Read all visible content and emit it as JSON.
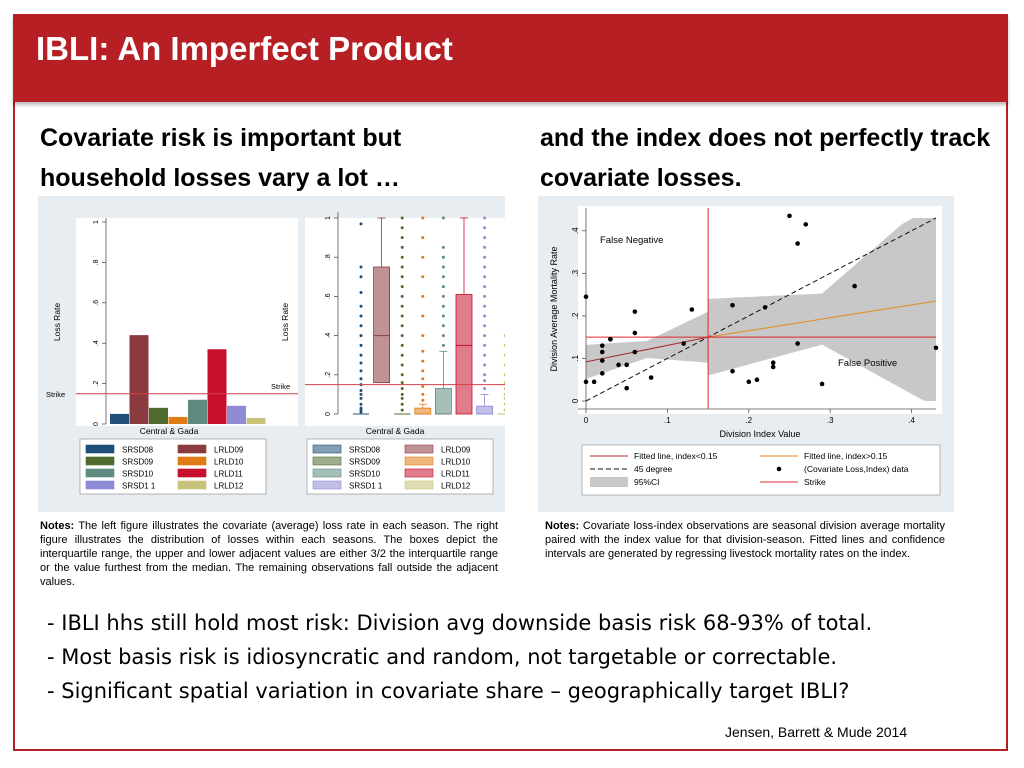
{
  "slide": {
    "title": "IBLI: An Imperfect Product",
    "left_heading": "Covariate risk is important but household losses vary a lot …",
    "right_heading": "and the index does not perfectly track covariate losses.",
    "left_notes_label": "Notes:",
    "left_notes": "The left figure illustrates the covariate (average) loss rate in each season.  The right figure illustrates the distribution of losses within each seasons. The boxes depict the interquartile range, the upper and lower adjacent values are either 3/2 the interquartile range or the value furthest from the median. The remaining observations fall outside the adjacent values.",
    "right_notes_label": "Notes:",
    "right_notes": "Covariate loss-index observations are seasonal division average mortality paired with the index value for that division-season. Fitted lines and confidence intervals are generated by regressing livestock mortality rates on the index.",
    "bullets": [
      "- IBLI hhs still hold most risk: Division avg downside basis risk 68-93% of total.",
      "- Most basis risk is idiosyncratic and random, not targetable or correctable.",
      "- Significant spatial variation in covariate share – geographically target IBLI?"
    ],
    "citation": "Jensen, Barrett & Mude 2014"
  },
  "colors": {
    "title_bar": "#b61f24",
    "SRSD08": "#1f4e79",
    "LRLD09": "#8b3a3f",
    "SRSD09": "#4f6b2f",
    "LRLD10": "#e07c14",
    "SRSD10": "#5f8a80",
    "LRLD11": "#c8102e",
    "SRSD11": "#8e8ad6",
    "LRLD12": "#c9c27a",
    "strike": "#d6404a",
    "ci_band": "#c8c8c8"
  },
  "chart_data": [
    {
      "type": "bar",
      "title": "",
      "xlabel": "Central & Gada",
      "ylabel": "Loss Rate",
      "ylim": [
        0,
        1
      ],
      "yticks": [
        "0",
        ".2",
        ".4",
        ".6",
        ".8",
        "1"
      ],
      "strike": 0.15,
      "strike_label": "Strike",
      "categories": [
        "SRSD08",
        "LRLD09",
        "SRSD09",
        "LRLD10",
        "SRSD10",
        "LRLD11",
        "SRSD11",
        "LRLD12"
      ],
      "values": [
        0.05,
        0.44,
        0.08,
        0.035,
        0.12,
        0.37,
        0.09,
        0.03
      ],
      "legend": [
        "SRSD08",
        "LRLD09",
        "SRSD09",
        "LRLD10",
        "SRSD10",
        "LRLD11",
        "SRSD1 1",
        "LRLD12"
      ],
      "legend_placement": "bottom"
    },
    {
      "type": "box",
      "title": "",
      "xlabel": "Central & Gada",
      "ylabel": "Loss Rate",
      "ylim": [
        0,
        1
      ],
      "yticks": [
        "0",
        ".2",
        ".4",
        ".6",
        ".8",
        "1"
      ],
      "strike": 0.15,
      "strike_label": "Strike",
      "series": [
        {
          "name": "SRSD08",
          "q1": 0.0,
          "median": 0.0,
          "q3": 0.0,
          "lower": 0.0,
          "upper": 0.0,
          "outliers": [
            0.01,
            0.02,
            0.03,
            0.05,
            0.08,
            0.1,
            0.12,
            0.15,
            0.18,
            0.22,
            0.26,
            0.3,
            0.35,
            0.4,
            0.45,
            0.5,
            0.55,
            0.62,
            0.7,
            0.75,
            0.97
          ]
        },
        {
          "name": "LRLD09",
          "q1": 0.16,
          "median": 0.4,
          "q3": 0.75,
          "lower": 0.0,
          "upper": 1.0,
          "outliers": []
        },
        {
          "name": "SRSD09",
          "q1": 0.0,
          "median": 0.0,
          "q3": 0.0,
          "lower": 0.0,
          "upper": 0.0,
          "outliers": [
            0.02,
            0.05,
            0.08,
            0.1,
            0.13,
            0.16,
            0.2,
            0.25,
            0.3,
            0.35,
            0.4,
            0.45,
            0.5,
            0.55,
            0.6,
            0.65,
            0.7,
            0.75,
            0.8,
            0.85,
            0.9,
            0.95,
            1.0
          ]
        },
        {
          "name": "LRLD10",
          "q1": 0.0,
          "median": 0.0,
          "q3": 0.03,
          "lower": 0.0,
          "upper": 0.05,
          "outliers": [
            0.07,
            0.1,
            0.14,
            0.18,
            0.22,
            0.27,
            0.32,
            0.4,
            0.5,
            0.6,
            0.7,
            0.8,
            0.9,
            1.0
          ]
        },
        {
          "name": "SRSD10",
          "q1": 0.0,
          "median": 0.0,
          "q3": 0.13,
          "lower": 0.0,
          "upper": 0.32,
          "outliers": [
            0.35,
            0.4,
            0.45,
            0.5,
            0.55,
            0.6,
            0.65,
            0.7,
            0.75,
            0.8,
            0.85,
            1.0
          ]
        },
        {
          "name": "LRLD11",
          "q1": 0.0,
          "median": 0.35,
          "q3": 0.61,
          "lower": 0.0,
          "upper": 1.0,
          "outliers": []
        },
        {
          "name": "SRSD11",
          "q1": 0.0,
          "median": 0.0,
          "q3": 0.04,
          "lower": 0.0,
          "upper": 0.1,
          "outliers": [
            0.13,
            0.17,
            0.2,
            0.25,
            0.3,
            0.35,
            0.4,
            0.45,
            0.5,
            0.55,
            0.6,
            0.65,
            0.7,
            0.75,
            0.8,
            0.85,
            0.9,
            0.95,
            1.0
          ]
        },
        {
          "name": "LRLD12",
          "q1": 0.0,
          "median": 0.0,
          "q3": 0.0,
          "lower": 0.0,
          "upper": 0.0,
          "outliers": [
            0.02,
            0.05,
            0.08,
            0.1,
            0.13,
            0.16,
            0.2,
            0.25,
            0.3,
            0.35,
            0.4
          ]
        }
      ],
      "legend": [
        "SRSD08",
        "LRLD09",
        "SRSD09",
        "LRLD10",
        "SRSD10",
        "LRLD11",
        "SRSD1 1",
        "LRLD12"
      ],
      "legend_placement": "bottom"
    },
    {
      "type": "scatter",
      "title": "",
      "xlabel": "Division Index Value",
      "ylabel": "Division Average Mortality Rate",
      "xlim": [
        0,
        0.43
      ],
      "ylim": [
        0,
        0.43
      ],
      "xticks": [
        "0",
        ".1",
        ".2",
        ".3",
        ".4"
      ],
      "yticks": [
        "0",
        ".1",
        ".2",
        ".3",
        ".4"
      ],
      "strike": 0.15,
      "points": [
        [
          0.0,
          0.245
        ],
        [
          0.0,
          0.045
        ],
        [
          0.01,
          0.045
        ],
        [
          0.02,
          0.13
        ],
        [
          0.02,
          0.115
        ],
        [
          0.02,
          0.095
        ],
        [
          0.02,
          0.065
        ],
        [
          0.03,
          0.145
        ],
        [
          0.03,
          0.145
        ],
        [
          0.04,
          0.085
        ],
        [
          0.05,
          0.085
        ],
        [
          0.05,
          0.03
        ],
        [
          0.06,
          0.21
        ],
        [
          0.06,
          0.16
        ],
        [
          0.06,
          0.115
        ],
        [
          0.08,
          0.055
        ],
        [
          0.12,
          0.135
        ],
        [
          0.13,
          0.215
        ],
        [
          0.18,
          0.225
        ],
        [
          0.18,
          0.07
        ],
        [
          0.2,
          0.045
        ],
        [
          0.21,
          0.05
        ],
        [
          0.22,
          0.22
        ],
        [
          0.23,
          0.09
        ],
        [
          0.23,
          0.08
        ],
        [
          0.26,
          0.135
        ],
        [
          0.25,
          0.435
        ],
        [
          0.26,
          0.37
        ],
        [
          0.27,
          0.415
        ],
        [
          0.29,
          0.04
        ],
        [
          0.33,
          0.27
        ],
        [
          0.43,
          0.125
        ]
      ],
      "fit_low": {
        "x": [
          0,
          0.15
        ],
        "y": [
          0.092,
          0.15
        ]
      },
      "fit_high": {
        "x": [
          0.15,
          0.43
        ],
        "y": [
          0.15,
          0.235
        ]
      },
      "fit_45": {
        "x": [
          0,
          0.43
        ],
        "y": [
          0,
          0.43
        ]
      },
      "annotations": [
        "False Negative",
        "False Positive"
      ],
      "legend": [
        "Fitted line, index<0.15",
        "Fitted line, index>0.15",
        "45 degree",
        "(Covariate Loss,Index) data",
        "95%CI",
        "Strike"
      ],
      "legend_placement": "bottom"
    }
  ]
}
